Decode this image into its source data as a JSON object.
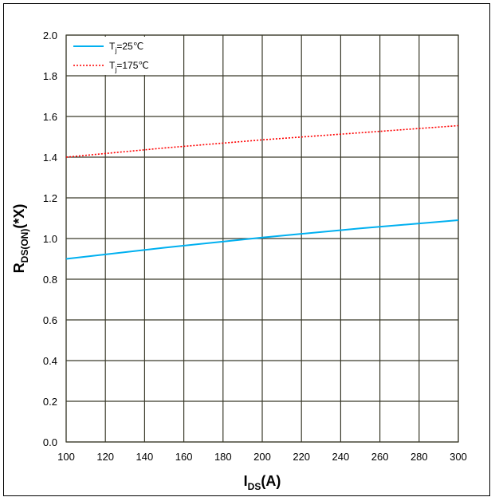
{
  "chart_data": {
    "type": "line",
    "title": "",
    "xlabel": {
      "main": "I",
      "sub": "DS",
      "tail": "(A)"
    },
    "ylabel": {
      "main": "R",
      "sub": "DS(ON)",
      "tail": "(*X)"
    },
    "xlim": [
      100,
      300
    ],
    "ylim": [
      0.0,
      2.0
    ],
    "xticks": [
      100,
      120,
      140,
      160,
      180,
      200,
      220,
      240,
      260,
      280,
      300
    ],
    "yticks": [
      "0.0",
      "0.2",
      "0.4",
      "0.6",
      "0.8",
      "1.0",
      "1.2",
      "1.4",
      "1.6",
      "1.8",
      "2.0"
    ],
    "grid": true,
    "legend_position": "top-left",
    "series": [
      {
        "name": {
          "main": "T",
          "sub": "j",
          "tail": "=25℃"
        },
        "color": "#00B0F0",
        "style": "solid",
        "x": [
          100,
          150,
          200,
          250,
          300
        ],
        "y": [
          0.9,
          0.955,
          1.005,
          1.05,
          1.09
        ]
      },
      {
        "name": {
          "main": "T",
          "sub": "j",
          "tail": "=175℃"
        },
        "color": "#FF0000",
        "style": "dotted",
        "x": [
          100,
          150,
          200,
          250,
          300
        ],
        "y": [
          1.4,
          1.445,
          1.485,
          1.52,
          1.555
        ]
      }
    ]
  }
}
